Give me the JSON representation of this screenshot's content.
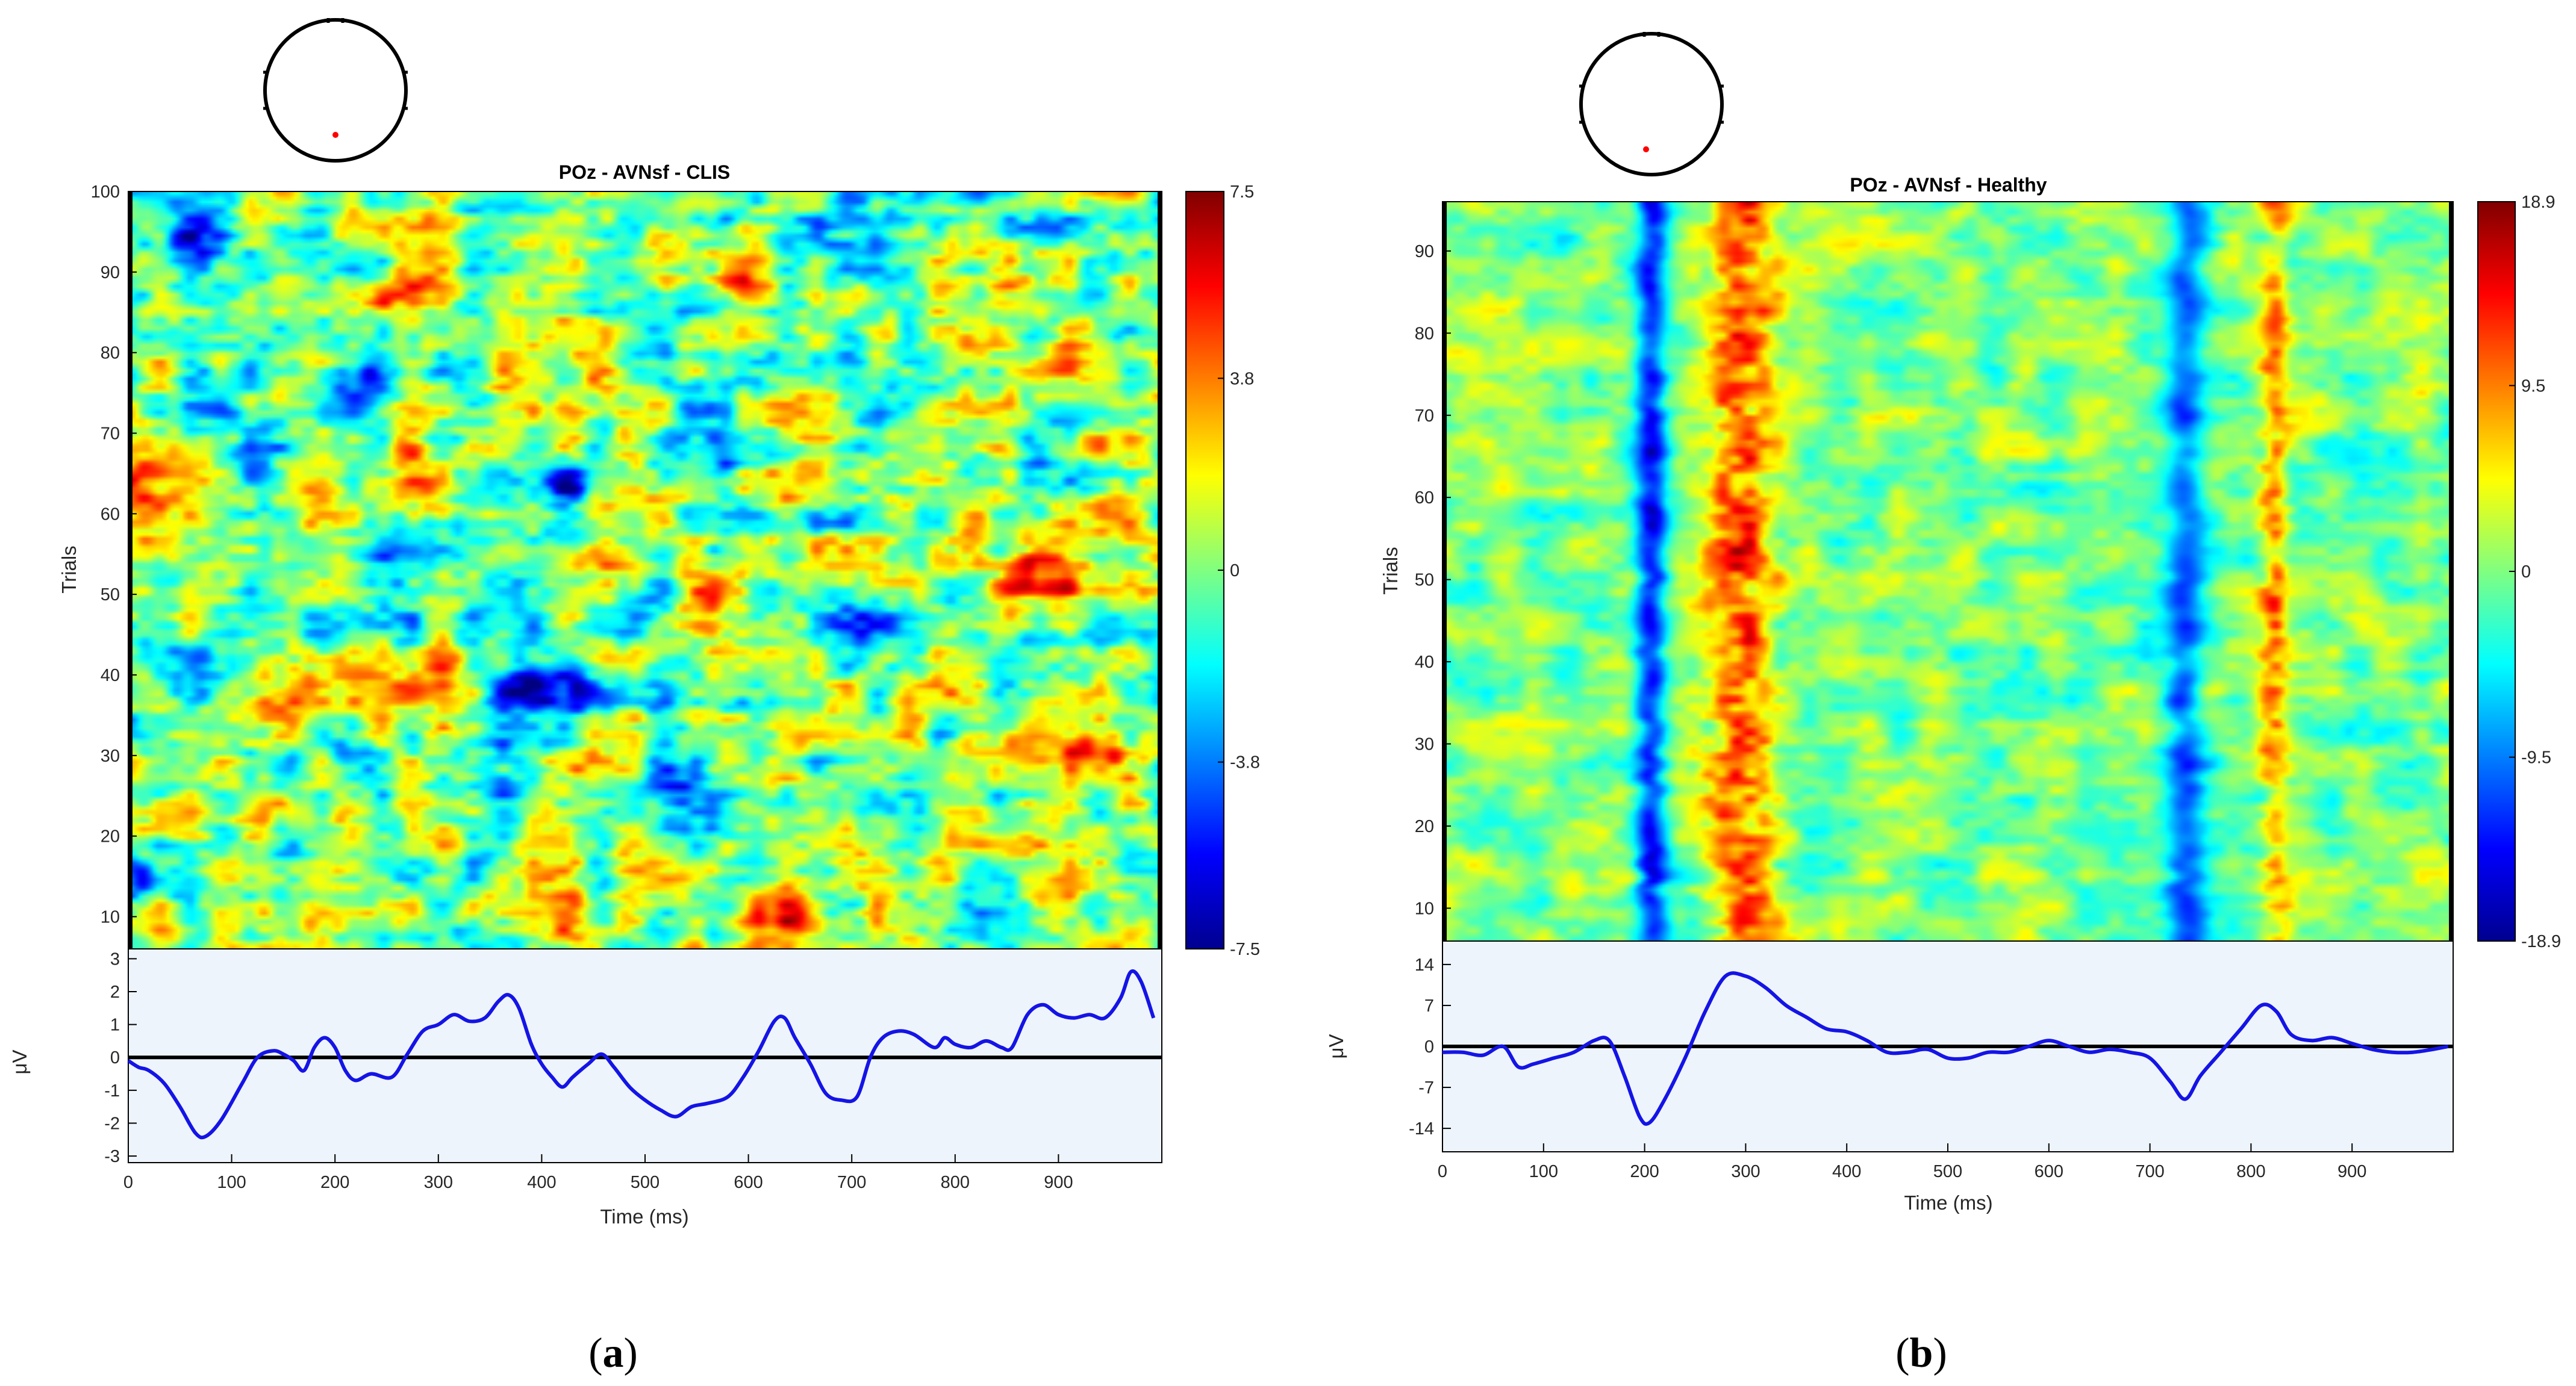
{
  "panels": [
    {
      "id": "a",
      "label": "(a)",
      "label_letter": "a",
      "head_icon": "scalp-map-icon",
      "chart_data": {
        "type": "heatmap",
        "title": "POz - AVNsf - CLIS",
        "xlabel": "Time (ms)",
        "ylabel": "Trials",
        "xlim": [
          0,
          1000
        ],
        "ylim": [
          6,
          100
        ],
        "x_ticks": [
          0,
          100,
          200,
          300,
          400,
          500,
          600,
          700,
          800,
          900
        ],
        "y_ticks": [
          10,
          20,
          30,
          40,
          50,
          60,
          70,
          80,
          90,
          100
        ],
        "colorbar": {
          "colormap": "jet",
          "min": -7.5,
          "max": 7.5,
          "ticks": [
            7.5,
            3.8,
            0,
            -3.8,
            -7.5
          ]
        },
        "erp": {
          "type": "line",
          "ylabel": "μV",
          "ylim": [
            -3.2,
            3.3
          ],
          "y_ticks": [
            3,
            2,
            1,
            0,
            -1,
            -2,
            -3
          ],
          "color": "#1414e6",
          "x": [
            0,
            10,
            20,
            35,
            50,
            65,
            75,
            90,
            110,
            125,
            140,
            150,
            160,
            170,
            180,
            190,
            200,
            210,
            220,
            235,
            255,
            270,
            285,
            300,
            315,
            330,
            345,
            358,
            368,
            378,
            390,
            400,
            410,
            420,
            430,
            445,
            458,
            470,
            485,
            500,
            515,
            530,
            545,
            560,
            580,
            595,
            610,
            625,
            635,
            645,
            660,
            675,
            690,
            705,
            718,
            730,
            745,
            760,
            780,
            790,
            800,
            815,
            830,
            845,
            855,
            870,
            885,
            900,
            915,
            930,
            945,
            960,
            970,
            980,
            992
          ],
          "values": [
            -0.1,
            -0.3,
            -0.4,
            -0.8,
            -1.5,
            -2.3,
            -2.4,
            -1.9,
            -0.8,
            0.0,
            0.2,
            0.1,
            -0.1,
            -0.4,
            0.3,
            0.6,
            0.3,
            -0.4,
            -0.7,
            -0.5,
            -0.6,
            0.1,
            0.8,
            1.0,
            1.3,
            1.1,
            1.2,
            1.7,
            1.9,
            1.5,
            0.4,
            -0.2,
            -0.6,
            -0.9,
            -0.6,
            -0.2,
            0.1,
            -0.3,
            -0.9,
            -1.3,
            -1.6,
            -1.8,
            -1.5,
            -1.4,
            -1.2,
            -0.6,
            0.2,
            1.1,
            1.2,
            0.6,
            -0.2,
            -1.1,
            -1.3,
            -1.2,
            0.0,
            0.6,
            0.8,
            0.7,
            0.3,
            0.6,
            0.4,
            0.3,
            0.5,
            0.3,
            0.3,
            1.3,
            1.6,
            1.3,
            1.2,
            1.3,
            1.2,
            1.8,
            2.6,
            2.3,
            1.2
          ]
        },
        "heatmap_features": {
          "cells": [
            {
              "x": 880,
              "trial": 52,
              "value": 7.0
            },
            {
              "x": 940,
              "trial": 30,
              "value": 6.5
            },
            {
              "x": 640,
              "trial": 10,
              "value": 6.5
            },
            {
              "x": 600,
              "trial": 88,
              "value": 5.5
            },
            {
              "x": 560,
              "trial": 48,
              "value": 5.5
            },
            {
              "x": 300,
              "trial": 40,
              "value": 4.5
            },
            {
              "x": 20,
              "trial": 66,
              "value": 5.0
            },
            {
              "x": 200,
              "trial": 62,
              "value": 4.0
            },
            {
              "x": 460,
              "trial": 76,
              "value": 4.5
            },
            {
              "x": 480,
              "trial": 53,
              "value": 4.5
            },
            {
              "x": 280,
              "trial": 63,
              "value": 4.5
            },
            {
              "x": 270,
              "trial": 88,
              "value": 4.0
            },
            {
              "x": 240,
              "trial": 38,
              "value": 4.0
            },
            {
              "x": 150,
              "trial": 38,
              "value": 4.0
            },
            {
              "x": 960,
              "trial": 60,
              "value": 3.5
            },
            {
              "x": 420,
              "trial": 10,
              "value": 3.0
            },
            {
              "x": 220,
              "trial": 75,
              "value": -6.5
            },
            {
              "x": 420,
              "trial": 62,
              "value": -6.0
            },
            {
              "x": 380,
              "trial": 40,
              "value": -6.5
            },
            {
              "x": 500,
              "trial": 48,
              "value": -5.5
            },
            {
              "x": 260,
              "trial": 53,
              "value": -5.0
            },
            {
              "x": 60,
              "trial": 95,
              "value": -5.0
            },
            {
              "x": 440,
              "trial": 38,
              "value": -5.5
            },
            {
              "x": 540,
              "trial": 70,
              "value": -5.0
            },
            {
              "x": 80,
              "trial": 40,
              "value": -4.5
            },
            {
              "x": 360,
              "trial": 28,
              "value": -5.0
            },
            {
              "x": 540,
              "trial": 25,
              "value": -5.0
            },
            {
              "x": 700,
              "trial": 45,
              "value": -4.5
            },
            {
              "x": 120,
              "trial": 68,
              "value": -4.5
            },
            {
              "x": 700,
              "trial": 95,
              "value": -4.0
            },
            {
              "x": 760,
              "trial": 75,
              "value": -4.0
            },
            {
              "x": 20,
              "trial": 15,
              "value": -4.0
            }
          ]
        }
      }
    },
    {
      "id": "b",
      "label": "(b)",
      "label_letter": "b",
      "head_icon": "scalp-map-icon",
      "chart_data": {
        "type": "heatmap",
        "title": "POz - AVNsf - Healthy",
        "xlabel": "Time (ms)",
        "ylabel": "Trials",
        "xlim": [
          0,
          1000
        ],
        "ylim": [
          6,
          96
        ],
        "x_ticks": [
          0,
          100,
          200,
          300,
          400,
          500,
          600,
          700,
          800,
          900
        ],
        "y_ticks": [
          10,
          20,
          30,
          40,
          50,
          60,
          70,
          80,
          90
        ],
        "colorbar": {
          "colormap": "jet",
          "min": -18.9,
          "max": 18.9,
          "ticks": [
            18.9,
            9.5,
            0,
            -9.5,
            -18.9
          ]
        },
        "erp": {
          "type": "line",
          "ylabel": "μV",
          "ylim": [
            -18,
            18
          ],
          "y_ticks": [
            14,
            7,
            0,
            -7,
            -14
          ],
          "color": "#1414e6",
          "x": [
            0,
            20,
            40,
            60,
            75,
            90,
            110,
            130,
            150,
            165,
            180,
            195,
            205,
            220,
            240,
            260,
            280,
            300,
            320,
            340,
            360,
            380,
            400,
            420,
            440,
            460,
            480,
            500,
            520,
            540,
            560,
            580,
            600,
            620,
            640,
            660,
            680,
            700,
            720,
            735,
            750,
            770,
            790,
            810,
            825,
            840,
            860,
            880,
            900,
            920,
            940,
            960,
            980,
            995
          ],
          "values": [
            -1,
            -1,
            -1.5,
            0,
            -3.5,
            -3,
            -2,
            -1,
            1,
            1,
            -5,
            -12,
            -13,
            -9,
            -2,
            6,
            12,
            12,
            10,
            7,
            5,
            3,
            2.5,
            1,
            -1,
            -1,
            -0.5,
            -2,
            -2,
            -1,
            -1,
            0,
            1,
            0,
            -1,
            -0.5,
            -1,
            -2,
            -6,
            -9,
            -5,
            -1,
            3,
            7,
            6,
            2,
            1,
            1.5,
            0.5,
            -0.5,
            -1,
            -1,
            -0.5,
            0
          ]
        },
        "heatmap_features": {
          "bands": [
            {
              "x_center": 205,
              "width": 16,
              "value": -16
            },
            {
              "x_center": 295,
              "width": 34,
              "value": 13
            },
            {
              "x_center": 735,
              "width": 20,
              "value": -12
            },
            {
              "x_center": 825,
              "width": 14,
              "value": 9
            }
          ]
        }
      }
    }
  ]
}
